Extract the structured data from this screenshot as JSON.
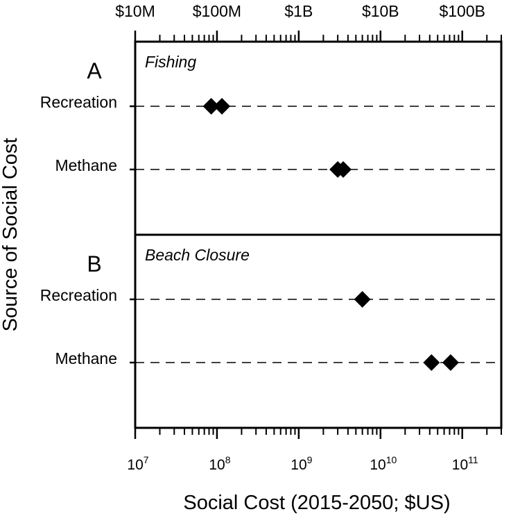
{
  "chart_data": {
    "type": "scatter",
    "x_scale": "log",
    "xlim": [
      10000000,
      300000000000
    ],
    "xlabel": "Social Cost (2015-2050; $US)",
    "ylabel": "Source of Social Cost",
    "top_axis_tick_labels": [
      {
        "value": 10000000,
        "label": "$10M"
      },
      {
        "value": 100000000,
        "label": "$100M"
      },
      {
        "value": 1000000000,
        "label": "$1B"
      },
      {
        "value": 10000000000,
        "label": "$10B"
      },
      {
        "value": 100000000000,
        "label": "$100B"
      }
    ],
    "bottom_axis_tick_labels": [
      {
        "value": 10000000,
        "base": "10",
        "exponent": "7"
      },
      {
        "value": 100000000,
        "base": "10",
        "exponent": "8"
      },
      {
        "value": 1000000000,
        "base": "10",
        "exponent": "9"
      },
      {
        "value": 10000000000,
        "base": "10",
        "exponent": "10"
      },
      {
        "value": 100000000000,
        "base": "10",
        "exponent": "11"
      }
    ],
    "panels": [
      {
        "letter": "A",
        "title": "Fishing",
        "rows": [
          {
            "label": "Recreation",
            "values": [
              85000000,
              115000000
            ]
          },
          {
            "label": "Methane",
            "values": [
              3000000000,
              3500000000
            ]
          }
        ]
      },
      {
        "letter": "B",
        "title": "Beach Closure",
        "rows": [
          {
            "label": "Recreation",
            "values": [
              6000000000
            ]
          },
          {
            "label": "Methane",
            "values": [
              42000000000,
              72000000000
            ]
          }
        ]
      }
    ],
    "marker": "diamond",
    "marker_color": "#000000",
    "grid": "dashed horizontal guide per row"
  }
}
